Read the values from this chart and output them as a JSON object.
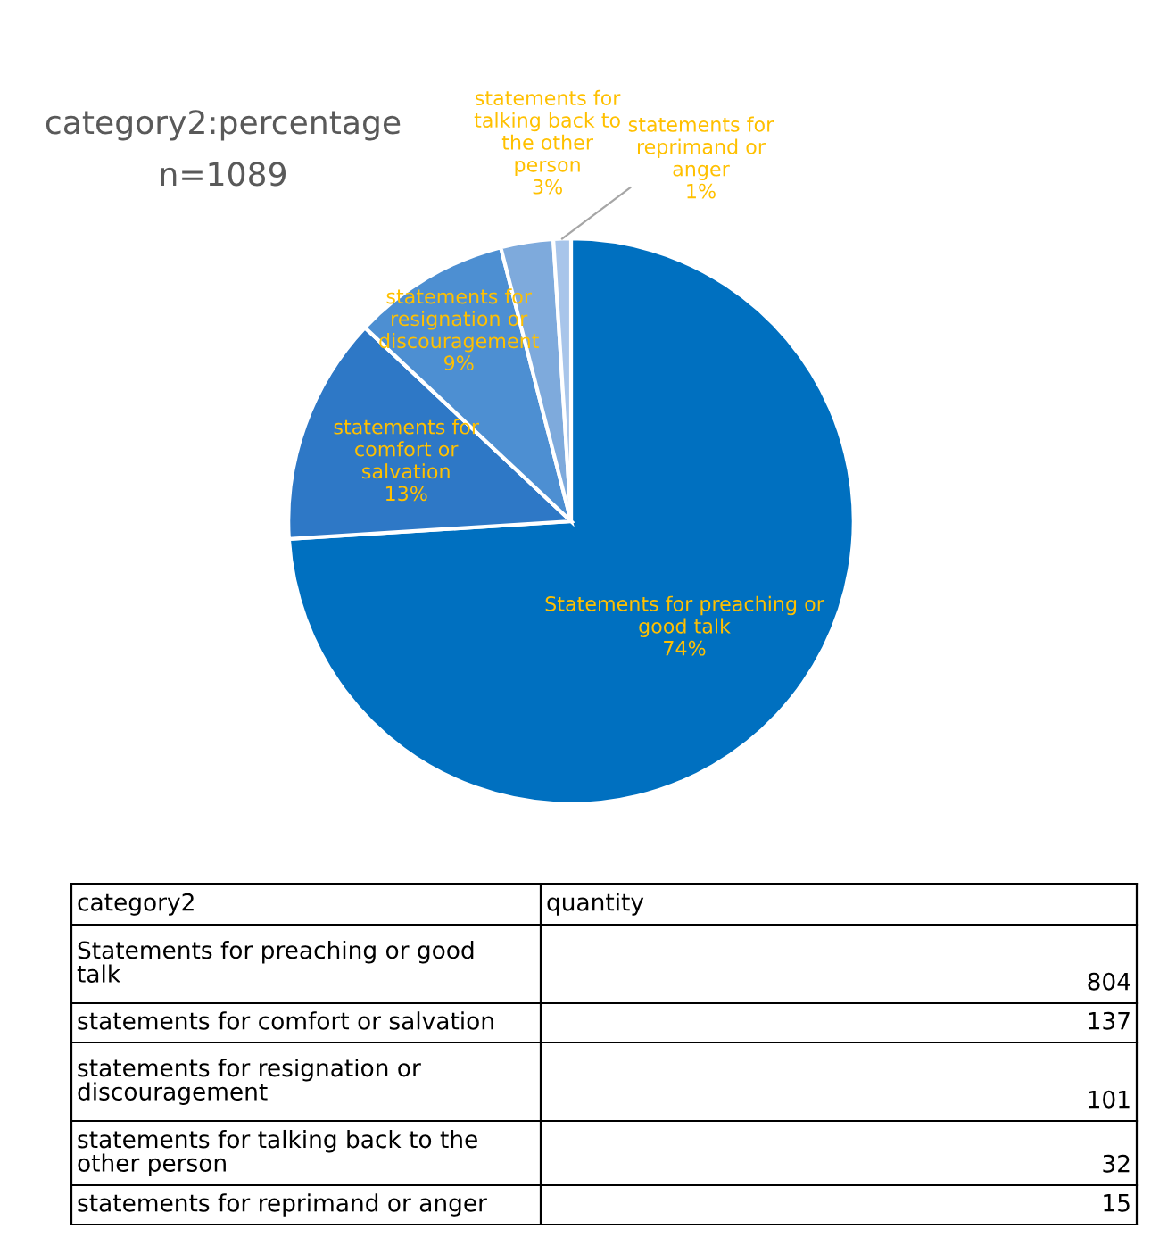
{
  "chart_data": [
    {
      "type": "pie",
      "title": "category2:percentage",
      "subtitle": "n=1089",
      "categories": [
        "Statements for preaching or good talk",
        "statements for comfort or salvation",
        "statements for resignation or discouragement",
        "statements for talking back to the other person",
        "statements for reprimand or anger"
      ],
      "values": [
        74,
        13,
        9,
        3,
        1
      ],
      "value_labels": [
        "74%",
        "13%",
        "9%",
        "3%",
        "1%"
      ],
      "colors": [
        "#0070c0",
        "#2e78c6",
        "#4d8fd2",
        "#7eaadc",
        "#a8c5ea"
      ]
    },
    {
      "type": "other",
      "categories": [
        "Statements for preaching or good talk",
        "statements for comfort or salvation",
        "statements for resignation or discouragement",
        "statements for talking back to the other person",
        "statements for reprimand or anger"
      ],
      "values": [
        804,
        137,
        101,
        32,
        15
      ],
      "data_labels": true,
      "annotations": [
        "category2",
        "quantity"
      ]
    }
  ]
}
